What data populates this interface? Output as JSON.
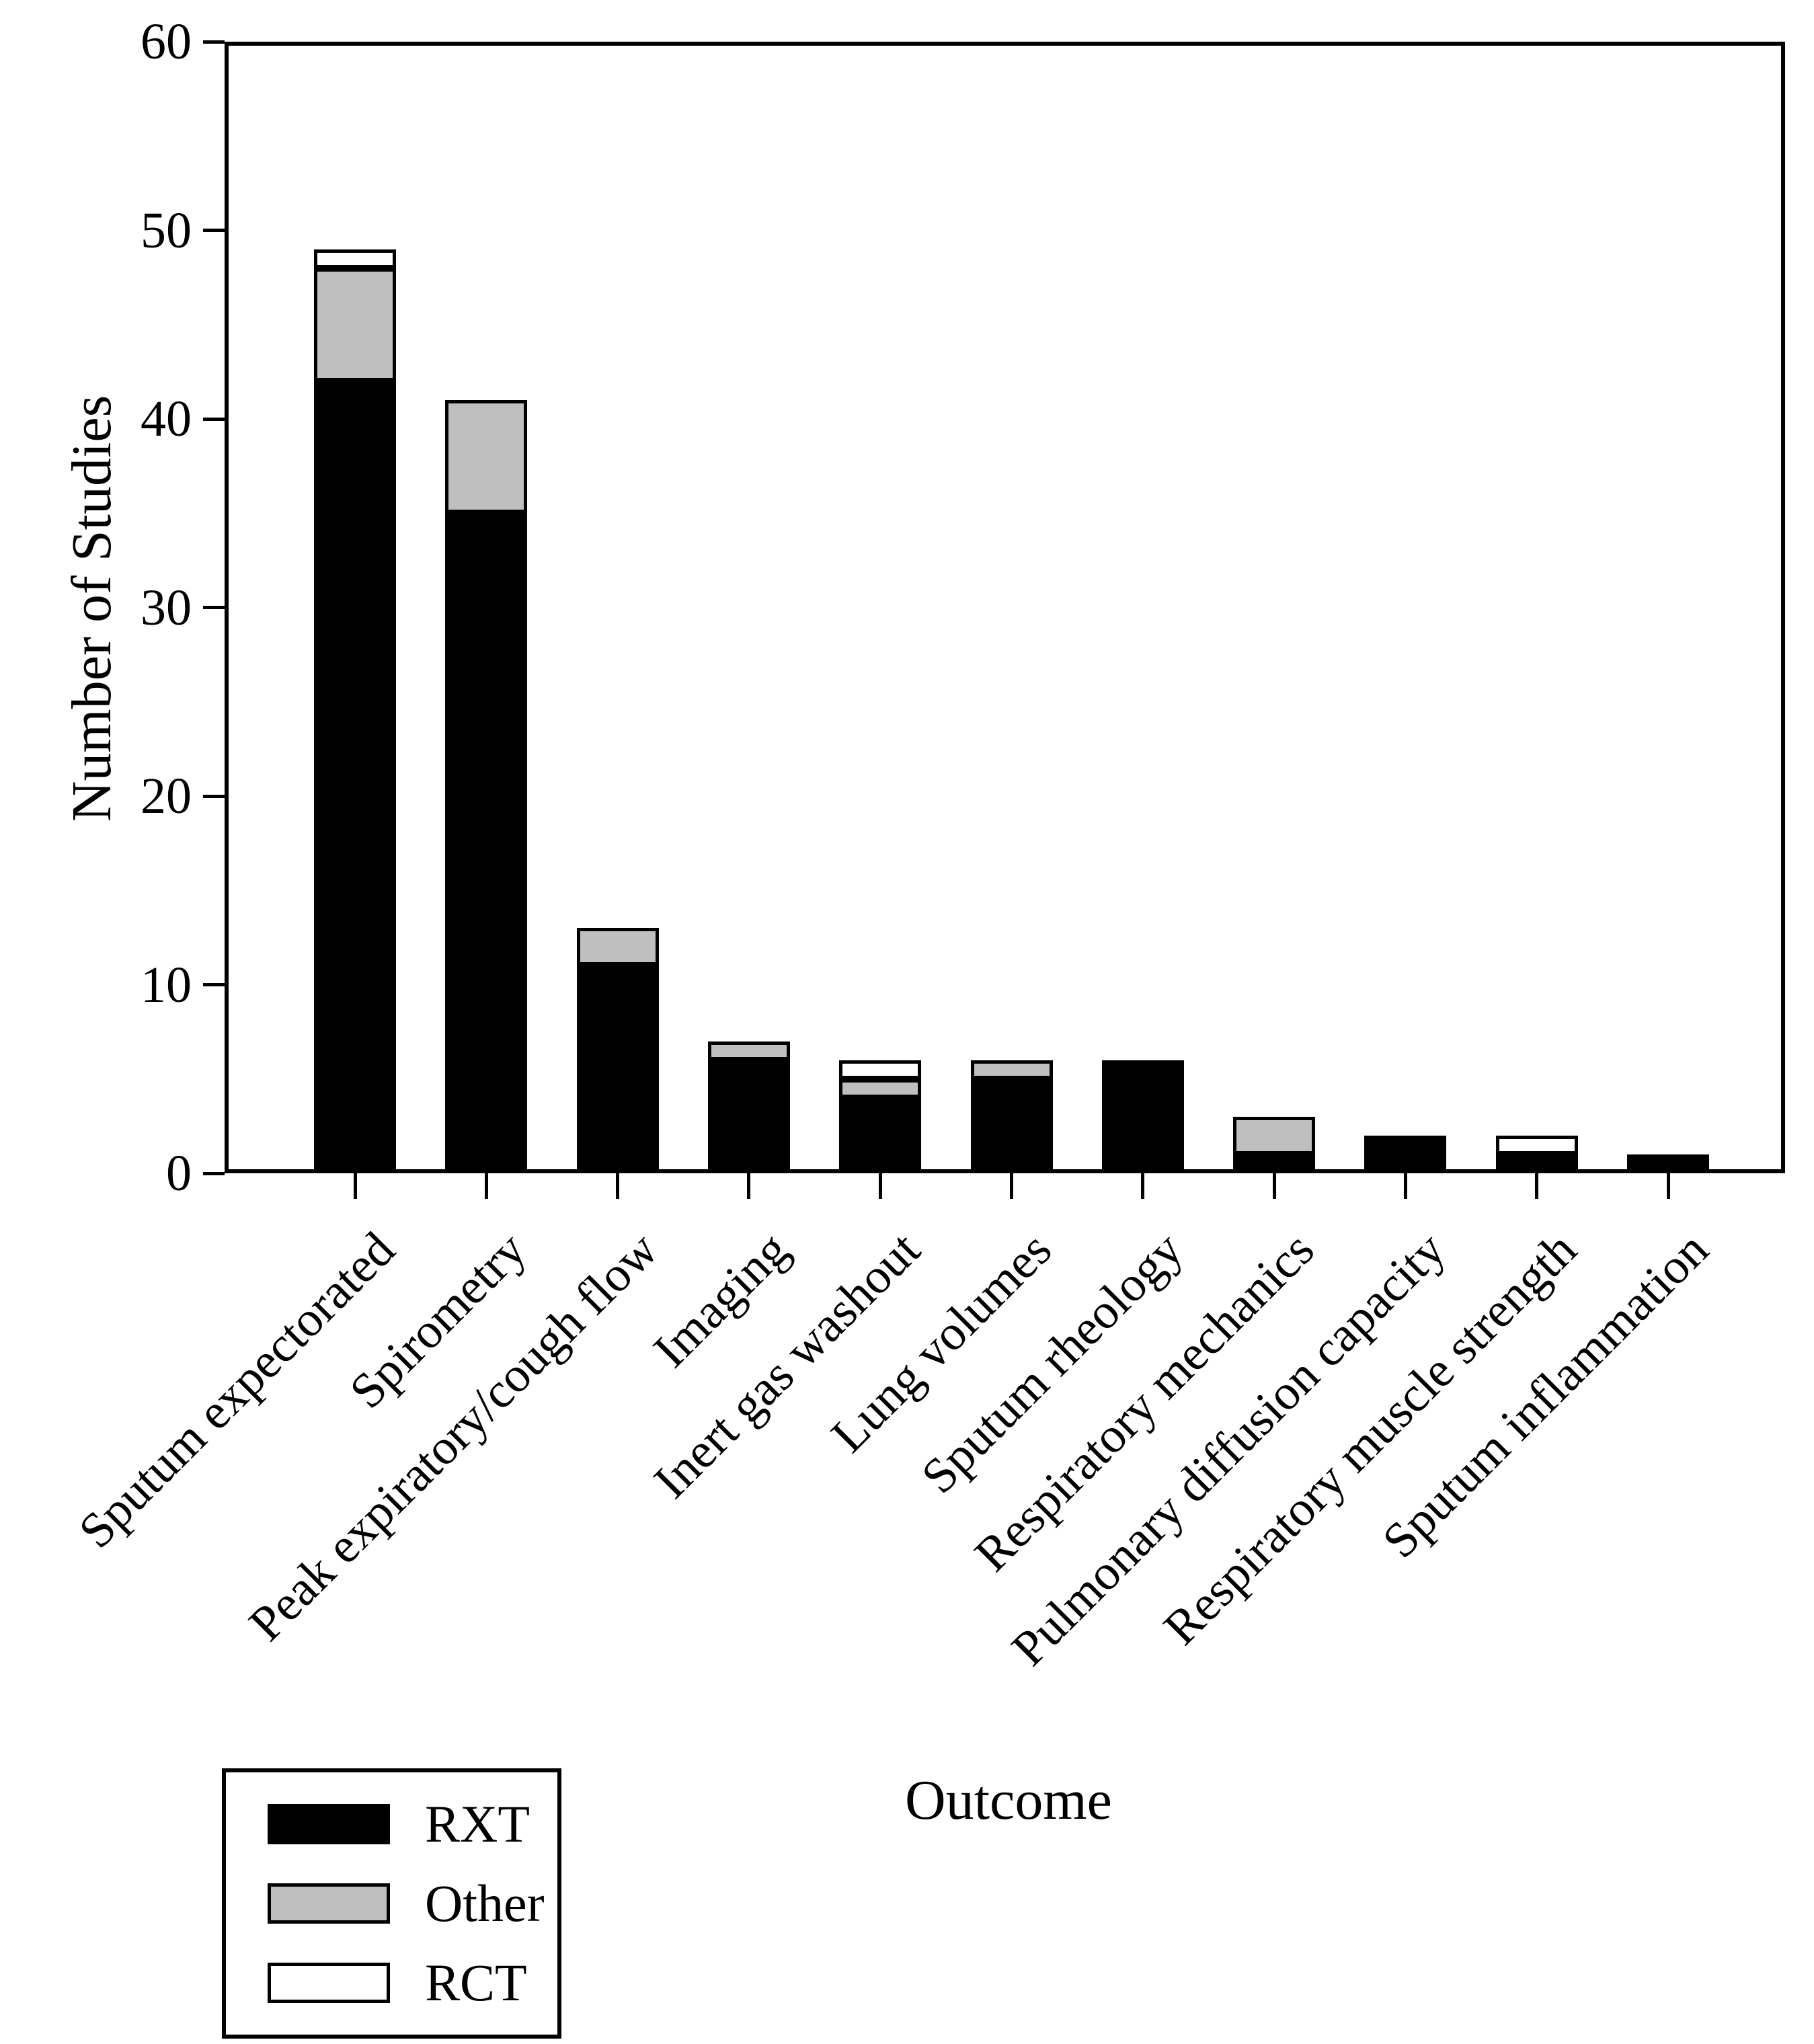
{
  "chart_data": {
    "type": "bar",
    "stacked": true,
    "title": "",
    "xlabel": "Outcome",
    "ylabel": "Number of Studies",
    "ylim": [
      0,
      60
    ],
    "yticks": [
      0,
      10,
      20,
      30,
      40,
      50,
      60
    ],
    "grid": false,
    "legend_position": "bottom-left",
    "categories": [
      "Sputum expectorated",
      "Spirometry",
      "Peak expiratory/cough flow",
      "Imaging",
      "Inert gas washout",
      "Lung volumes",
      "Sputum rheology",
      "Respiratory mechanics",
      "Pulmonary diffusion capacity",
      "Respiratory muscle strength",
      "Sputum inflammation"
    ],
    "series": [
      {
        "name": "RXT",
        "color": "#000000",
        "values": [
          42,
          35,
          11,
          6,
          4,
          5,
          6,
          1,
          2,
          1,
          1
        ]
      },
      {
        "name": "Other",
        "color": "#BFBFBF",
        "values": [
          6,
          6,
          2,
          1,
          1,
          1,
          0,
          2,
          0,
          0,
          0
        ]
      },
      {
        "name": "RCT",
        "color": "#FFFFFF",
        "values": [
          1,
          0,
          0,
          0,
          1,
          0,
          0,
          0,
          0,
          1,
          0
        ]
      }
    ],
    "totals": [
      49,
      41,
      13,
      7,
      6,
      6,
      6,
      3,
      2,
      2,
      1
    ]
  }
}
